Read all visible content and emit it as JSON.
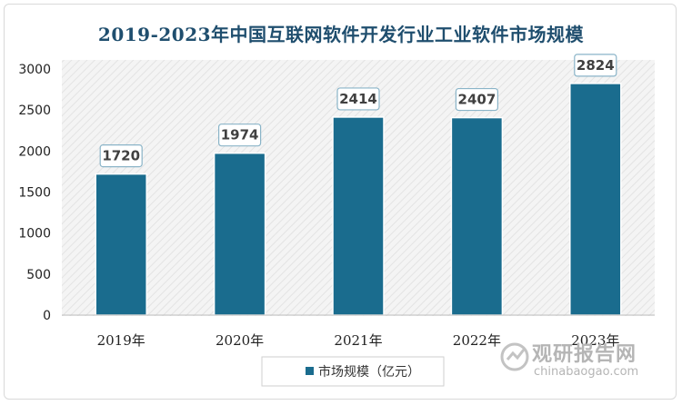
{
  "chart_data": {
    "type": "bar",
    "title": "2019-2023年中国互联网软件开发行业工业软件市场规模",
    "categories": [
      "2019年",
      "2020年",
      "2021年",
      "2022年",
      "2023年"
    ],
    "series": [
      {
        "name": "市场规模（亿元）",
        "values": [
          1720,
          1974,
          2414,
          2407,
          2824
        ]
      }
    ],
    "ylim": [
      0,
      3000
    ],
    "yticks": [
      0,
      500,
      1000,
      1500,
      2000,
      2500,
      3000
    ],
    "grid": false,
    "legend": "bottom",
    "colors": {
      "bar": "#1a6c8e",
      "label_border": "#8ab4c8",
      "title": "#1f4e6e",
      "plot_bg": "#f2f2f2"
    }
  },
  "watermark": {
    "cn": "观研报告网",
    "en": "chinabaogao.com"
  }
}
